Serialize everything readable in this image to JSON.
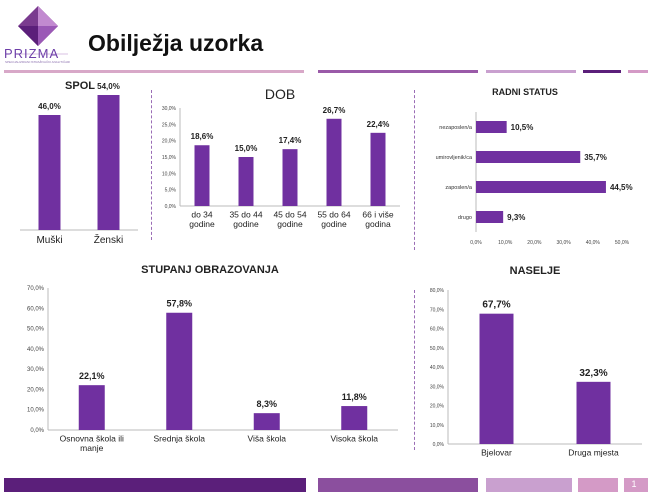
{
  "header": {
    "logo_text": "PRIZMA",
    "logo_sub": "SPECIJALIZIRANI ISTRAŽIVAČKI ANALITIČARI",
    "title": "Obilježja uzorka",
    "page_number": "1"
  },
  "colors": {
    "bar": "#7030a0",
    "accent_dark": "#5b1f7a",
    "accent_mid": "#8b4f9e",
    "accent_light": "#d49ac6"
  },
  "chart_data": [
    {
      "id": "spol",
      "type": "bar",
      "title": "SPOL",
      "categories": [
        "Muški",
        "Ženski"
      ],
      "values": [
        46.0,
        54.0
      ],
      "value_labels": [
        "46,0%",
        "54,0%"
      ],
      "ylim": [
        0,
        60
      ]
    },
    {
      "id": "dob",
      "type": "bar",
      "title": "DOB",
      "categories": [
        "do 34 godine",
        "35 do 44 godine",
        "45 do 54 godine",
        "55 do 64 godine",
        "66 i više godina"
      ],
      "category_lines": [
        [
          "do 34",
          "godine"
        ],
        [
          "35 do 44",
          "godine"
        ],
        [
          "45 do 54",
          "godine"
        ],
        [
          "55 do 64",
          "godine"
        ],
        [
          "66 i više",
          "godina"
        ]
      ],
      "values": [
        18.6,
        15.0,
        17.4,
        26.7,
        22.4
      ],
      "value_labels": [
        "18,6%",
        "15,0%",
        "17,4%",
        "26,7%",
        "22,4%"
      ],
      "ylim": [
        0,
        30
      ],
      "yticks": [
        "0,0%",
        "5,0%",
        "10,0%",
        "15,0%",
        "20,0%",
        "25,0%",
        "30,0%"
      ]
    },
    {
      "id": "radni",
      "type": "bar",
      "orientation": "horizontal",
      "title": "RADNI STATUS",
      "categories": [
        "nezaposlen/a",
        "umirovljenik/ca",
        "zaposlen/a",
        "drugo"
      ],
      "values": [
        10.5,
        35.7,
        44.5,
        9.3
      ],
      "value_labels": [
        "10,5%",
        "35,7%",
        "44,5%",
        "9,3%"
      ],
      "xlim": [
        0,
        50
      ],
      "xticks": [
        "0,0%",
        "10,0%",
        "20,0%",
        "30,0%",
        "40,0%",
        "50,0%"
      ]
    },
    {
      "id": "obrazovanje",
      "type": "bar",
      "title": "STUPANJ OBRAZOVANJA",
      "categories": [
        "Osnovna škola ili manje",
        "Srednja škola",
        "Viša škola",
        "Visoka škola"
      ],
      "category_lines": [
        [
          "Osnovna škola ili",
          "manje"
        ],
        [
          "Srednja škola"
        ],
        [
          "Viša škola"
        ],
        [
          "Visoka škola"
        ]
      ],
      "values": [
        22.1,
        57.8,
        8.3,
        11.8
      ],
      "value_labels": [
        "22,1%",
        "57,8%",
        "8,3%",
        "11,8%"
      ],
      "ylim": [
        0,
        70
      ],
      "yticks": [
        "0,0%",
        "10,0%",
        "20,0%",
        "30,0%",
        "40,0%",
        "50,0%",
        "60,0%",
        "70,0%"
      ]
    },
    {
      "id": "naselje",
      "type": "bar",
      "title": "NASELJE",
      "categories": [
        "Bjelovar",
        "Druga mjesta"
      ],
      "values": [
        67.7,
        32.3
      ],
      "value_labels": [
        "67,7%",
        "32,3%"
      ],
      "ylim": [
        0,
        80
      ],
      "yticks": [
        "0,0%",
        "10,0%",
        "20,0%",
        "30,0%",
        "40,0%",
        "50,0%",
        "60,0%",
        "70,0%",
        "80,0%"
      ]
    }
  ]
}
